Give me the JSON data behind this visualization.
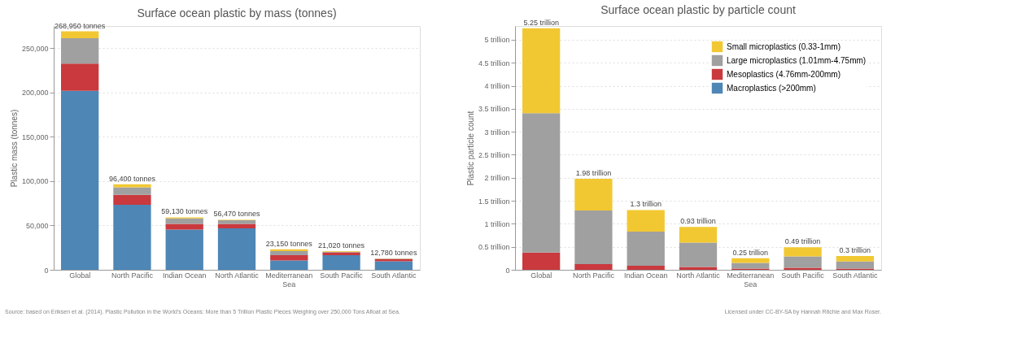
{
  "chart_data": [
    {
      "type": "bar",
      "title": "Surface ocean plastic by mass (tonnes)",
      "ylabel": "Plastic mass (tonnes)",
      "stacked": true,
      "grid": "y",
      "legend": false,
      "categories": [
        "Global",
        "North Pacific",
        "Indian Ocean",
        "North Atlantic",
        "Mediterranean Sea",
        "South Pacific",
        "South Atlantic"
      ],
      "series": [
        {
          "color": "#4e86b6",
          "values": [
            202000,
            73400,
            45300,
            46800,
            10600,
            16600,
            9700
          ]
        },
        {
          "color": "#c9393e",
          "values": [
            30500,
            11100,
            6600,
            5100,
            6000,
            3000,
            2400
          ]
        },
        {
          "color": "#a0a0a0",
          "values": [
            28700,
            8500,
            6100,
            4000,
            4500,
            900,
            400
          ]
        },
        {
          "color": "#f2c832",
          "values": [
            7750,
            3400,
            1130,
            570,
            2050,
            520,
            280
          ]
        }
      ],
      "totals": [
        "268,950 tonnes",
        "96,400 tonnes",
        "59,130 tonnes",
        "56,470 tonnes",
        "23,150 tonnes",
        "21,020 tonnes",
        "12,780 tonnes"
      ],
      "ylim": [
        0,
        275000
      ],
      "yticks": [
        0,
        {
          "value": 50000,
          "label": "50,000"
        },
        {
          "value": 100000,
          "label": "100,000"
        },
        {
          "value": 150000,
          "label": "150,000"
        },
        {
          "value": 200000,
          "label": "200,000"
        },
        {
          "value": 250000,
          "label": "250,000"
        }
      ],
      "annotations": [
        "Source: based on Eriksen et al. (2014). Plastic Pollution in the World's Oceans: More than 5 Trillion Plastic Pieces Weighing over 250,000 Tons Afloat at Sea."
      ]
    },
    {
      "type": "bar",
      "title": "Surface ocean plastic by particle count",
      "ylabel": "Plastic particle count",
      "stacked": true,
      "grid": "y",
      "legend": "top right",
      "categories": [
        "Global",
        "North Pacific",
        "Indian Ocean",
        "North Atlantic",
        "Mediterranean Sea",
        "South Pacific",
        "South Atlantic"
      ],
      "series": [
        {
          "name": "Macroplastics (>200mm)",
          "color": "#4e86b6",
          "values": [
            0,
            0,
            0,
            0,
            0,
            0,
            0
          ]
        },
        {
          "name": "Mesoplastics (4.76mm-200mm)",
          "color": "#c9393e",
          "values": [
            0.375,
            0.125,
            0.09,
            0.06,
            0.025,
            0.045,
            0.025
          ]
        },
        {
          "name": "Large microplastics (1.01mm-4.75mm)",
          "color": "#a0a0a0",
          "values": [
            3.03,
            1.165,
            0.74,
            0.53,
            0.125,
            0.245,
            0.155
          ]
        },
        {
          "name": "Small microplastics (0.33-1mm)",
          "color": "#f2c832",
          "values": [
            1.845,
            0.69,
            0.47,
            0.34,
            0.1,
            0.2,
            0.12
          ]
        }
      ],
      "totals": [
        "5.25 trillion",
        "1.98 trillion",
        "1.3 trillion",
        "0.93 trillion",
        "0.25 trillion",
        "0.49 trillion",
        "0.3 trillion"
      ],
      "ylim": [
        0,
        5.3
      ],
      "yticks": [
        0,
        {
          "value": 0.5,
          "label": "0.5 trillion"
        },
        {
          "value": 1,
          "label": "1 trillion"
        },
        {
          "value": 1.5,
          "label": "1.5 trillion"
        },
        {
          "value": 2,
          "label": "2 trillion"
        },
        {
          "value": 2.5,
          "label": "2.5 trillion"
        },
        {
          "value": 3,
          "label": "3 trillion"
        },
        {
          "value": 3.5,
          "label": "3.5 trillion"
        },
        {
          "value": 4,
          "label": "4 trillion"
        },
        {
          "value": 4.5,
          "label": "4.5 trillion"
        },
        {
          "value": 5,
          "label": "5 trillion"
        }
      ],
      "annotations": [
        "Licensed under CC-BY-SA by Hannah Ritchie and Max Roser."
      ]
    }
  ]
}
